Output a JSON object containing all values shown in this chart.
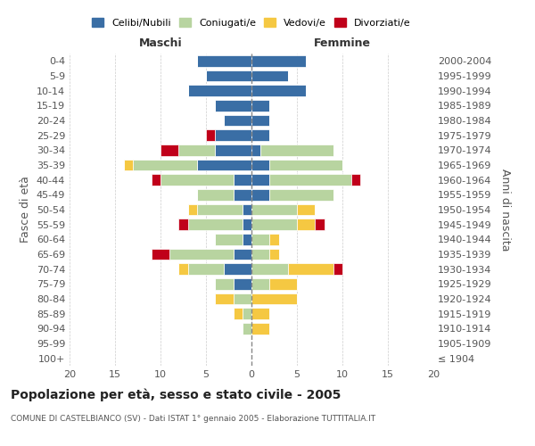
{
  "age_groups": [
    "100+",
    "95-99",
    "90-94",
    "85-89",
    "80-84",
    "75-79",
    "70-74",
    "65-69",
    "60-64",
    "55-59",
    "50-54",
    "45-49",
    "40-44",
    "35-39",
    "30-34",
    "25-29",
    "20-24",
    "15-19",
    "10-14",
    "5-9",
    "0-4"
  ],
  "birth_years": [
    "≤ 1904",
    "1905-1909",
    "1910-1914",
    "1915-1919",
    "1920-1924",
    "1925-1929",
    "1930-1934",
    "1935-1939",
    "1940-1944",
    "1945-1949",
    "1950-1954",
    "1955-1959",
    "1960-1964",
    "1965-1969",
    "1970-1974",
    "1975-1979",
    "1980-1984",
    "1985-1989",
    "1990-1994",
    "1995-1999",
    "2000-2004"
  ],
  "maschi": {
    "celibi": [
      0,
      0,
      0,
      0,
      0,
      2,
      3,
      2,
      1,
      1,
      1,
      2,
      2,
      6,
      4,
      4,
      3,
      4,
      7,
      5,
      6
    ],
    "coniugati": [
      0,
      0,
      1,
      1,
      2,
      2,
      4,
      7,
      3,
      6,
      5,
      4,
      8,
      7,
      4,
      0,
      0,
      0,
      0,
      0,
      0
    ],
    "vedovi": [
      0,
      0,
      0,
      1,
      2,
      0,
      1,
      0,
      0,
      0,
      1,
      0,
      0,
      1,
      0,
      0,
      0,
      0,
      0,
      0,
      0
    ],
    "divorziati": [
      0,
      0,
      0,
      0,
      0,
      0,
      0,
      2,
      0,
      1,
      0,
      0,
      1,
      0,
      2,
      1,
      0,
      0,
      0,
      0,
      0
    ]
  },
  "femmine": {
    "nubili": [
      0,
      0,
      0,
      0,
      0,
      0,
      0,
      0,
      0,
      0,
      0,
      2,
      2,
      2,
      1,
      2,
      2,
      2,
      6,
      4,
      6
    ],
    "coniugate": [
      0,
      0,
      0,
      0,
      0,
      2,
      4,
      2,
      2,
      5,
      5,
      7,
      9,
      8,
      8,
      0,
      0,
      0,
      0,
      0,
      0
    ],
    "vedove": [
      0,
      0,
      2,
      2,
      5,
      3,
      5,
      1,
      1,
      2,
      2,
      0,
      0,
      0,
      0,
      0,
      0,
      0,
      0,
      0,
      0
    ],
    "divorziate": [
      0,
      0,
      0,
      0,
      0,
      0,
      1,
      0,
      0,
      1,
      0,
      0,
      1,
      0,
      0,
      0,
      0,
      0,
      0,
      0,
      0
    ]
  },
  "colors": {
    "celibi": "#3a6ea5",
    "coniugati": "#b8d4a0",
    "vedovi": "#f5c842",
    "divorziati": "#c0001a"
  },
  "legend_labels": [
    "Celibi/Nubili",
    "Coniugati/e",
    "Vedovi/e",
    "Divorziati/e"
  ],
  "title": "Popolazione per età, sesso e stato civile - 2005",
  "subtitle": "COMUNE DI CASTELBIANCO (SV) - Dati ISTAT 1° gennaio 2005 - Elaborazione TUTTITALIA.IT",
  "xlabel_left": "Maschi",
  "xlabel_right": "Femmine",
  "ylabel_left": "Fasce di età",
  "ylabel_right": "Anni di nascita",
  "xlim": 20,
  "background_color": "#ffffff"
}
